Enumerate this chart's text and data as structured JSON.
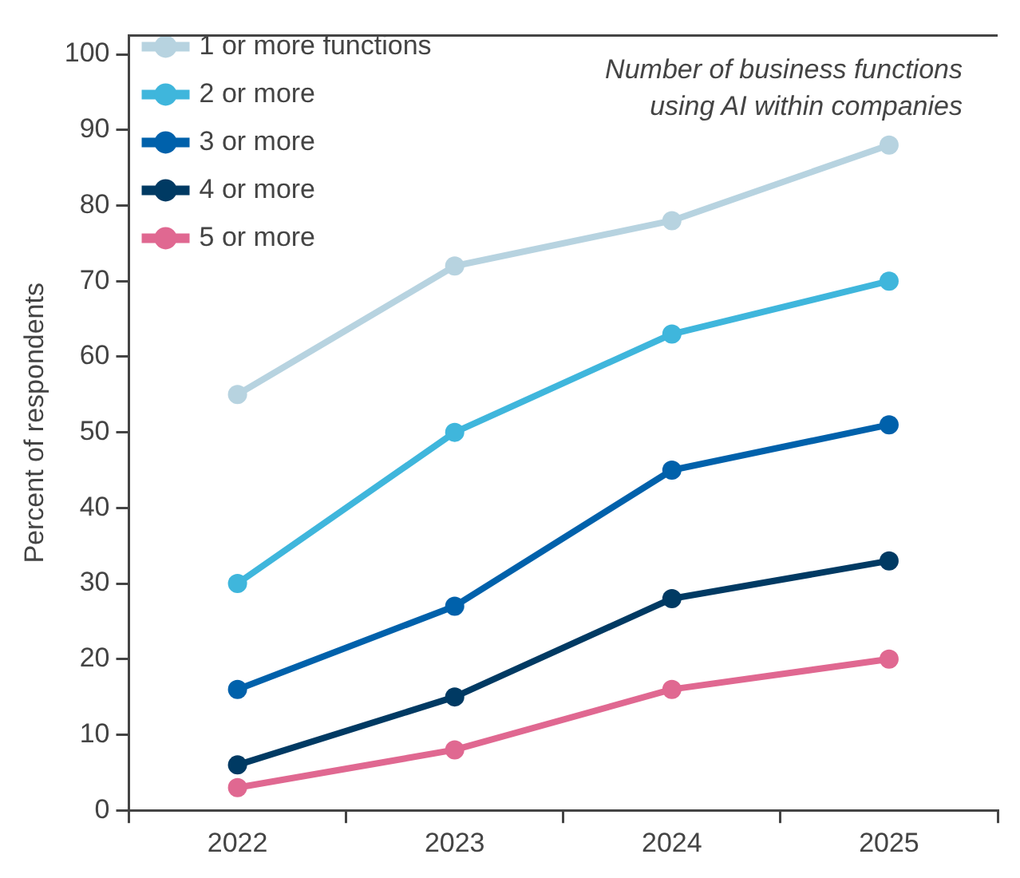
{
  "chart_data": {
    "type": "line",
    "ylabel": "Percent of respondents",
    "categories": [
      "2022",
      "2023",
      "2024",
      "2025"
    ],
    "series": [
      {
        "name": "1 or more functions",
        "color": "#b7d3e0",
        "values": [
          55,
          72,
          78,
          88
        ]
      },
      {
        "name": "2 or more",
        "color": "#3fb6dc",
        "values": [
          30,
          50,
          63,
          70
        ]
      },
      {
        "name": "3 or more",
        "color": "#0061ab",
        "values": [
          16,
          27,
          45,
          51
        ]
      },
      {
        "name": "4 or more",
        "color": "#003a63",
        "values": [
          6,
          15,
          28,
          33
        ]
      },
      {
        "name": "5 or more",
        "color": "#e06891",
        "values": [
          3,
          8,
          16,
          20
        ]
      }
    ],
    "ylim": [
      0,
      102.5
    ],
    "yticks": [
      0,
      10,
      20,
      30,
      40,
      50,
      60,
      70,
      80,
      90,
      100
    ],
    "grid": false,
    "legend": "top left",
    "marker": "circle",
    "line_style": "solid",
    "annotations": [
      "Number of business functions using AI within companies"
    ]
  }
}
